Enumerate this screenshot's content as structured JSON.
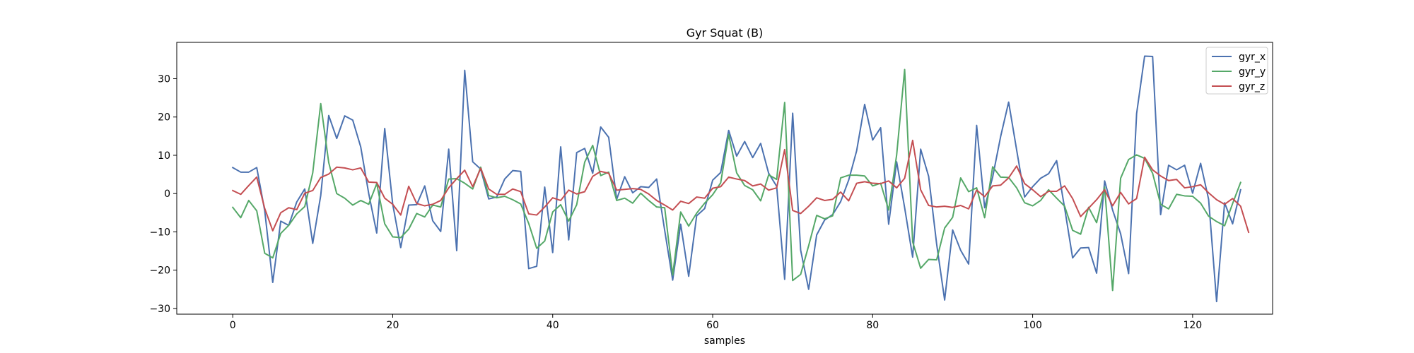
{
  "chart_data": {
    "type": "line",
    "title": "Gyr Squat (B)",
    "xlabel": "samples",
    "ylabel": "",
    "xlim": [
      -7,
      130
    ],
    "ylim": [
      -31.5,
      39.5
    ],
    "xticks": [
      0,
      20,
      40,
      60,
      80,
      100,
      120
    ],
    "yticks": [
      -30,
      -20,
      -10,
      0,
      10,
      20,
      30
    ],
    "grid": false,
    "legend_position": "top-right",
    "series": [
      {
        "name": "gyr_x",
        "color": "#4c72b0",
        "values": [
          6.8,
          5.6,
          5.6,
          6.8,
          -4.5,
          -23.2,
          -7.2,
          -8.3,
          -2.2,
          1.2,
          -13.0,
          -0.5,
          20.4,
          14.4,
          20.3,
          19.2,
          12.2,
          0.0,
          -10.3,
          17.0,
          -2.8,
          -14.1,
          -3.0,
          -2.9,
          2.0,
          -7.1,
          -9.9,
          11.6,
          -14.9,
          32.2,
          8.3,
          6.4,
          -1.4,
          -0.9,
          3.8,
          6.0,
          5.8,
          -19.6,
          -19.0,
          1.7,
          -15.4,
          12.2,
          -12.1,
          10.7,
          11.8,
          5.3,
          17.4,
          14.7,
          -1.5,
          4.4,
          0.2,
          1.8,
          1.6,
          3.8,
          -9.6,
          -22.6,
          -8.0,
          -21.6,
          -5.8,
          -3.9,
          3.5,
          5.5,
          16.5,
          9.8,
          13.6,
          9.4,
          13.1,
          5.3,
          1.9,
          -22.4,
          21.0,
          -14.8,
          -25.0,
          -10.8,
          -6.9,
          -5.5,
          -2.1,
          3.5,
          11.2,
          23.3,
          14.0,
          17.2,
          -8.0,
          8.3,
          -3.7,
          -16.6,
          11.6,
          4.5,
          -13.2,
          -27.8,
          -9.5,
          -14.8,
          -18.4,
          17.8,
          -3.7,
          4.3,
          14.9,
          23.9,
          11.4,
          -0.9,
          1.8,
          4.0,
          5.2,
          8.6,
          -3.8,
          -16.8,
          -14.2,
          -14.1,
          -20.8,
          3.3,
          -4.3,
          -10.5,
          -20.9,
          20.9,
          35.9,
          35.8,
          -5.5,
          7.4,
          6.2,
          7.4,
          0.1,
          7.9,
          -1.5,
          -28.2,
          -2.4,
          -7.9,
          1.0
        ]
      },
      {
        "name": "gyr_y",
        "color": "#55a868",
        "values": [
          -3.6,
          -6.3,
          -1.8,
          -4.5,
          -15.6,
          -16.8,
          -10.4,
          -8.3,
          -5.3,
          -3.4,
          5.4,
          23.5,
          8.1,
          0.0,
          -1.2,
          -3.0,
          -1.8,
          -2.8,
          2.6,
          -7.9,
          -11.3,
          -11.5,
          -9.3,
          -5.2,
          -6.1,
          -3.0,
          -3.5,
          3.8,
          3.9,
          2.7,
          1.2,
          6.9,
          -0.5,
          -1.1,
          -0.7,
          -1.6,
          -2.7,
          -7.8,
          -14.3,
          -12.4,
          -4.8,
          -2.9,
          -7.2,
          -2.9,
          8.2,
          12.6,
          4.7,
          5.6,
          -1.8,
          -1.2,
          -2.5,
          0.1,
          -1.8,
          -3.5,
          -3.7,
          -21.3,
          -4.8,
          -8.5,
          -5.1,
          -2.5,
          -0.3,
          2.8,
          15.4,
          5.4,
          2.1,
          1.0,
          -1.9,
          4.9,
          3.7,
          23.8,
          -22.7,
          -21.1,
          -13.6,
          -5.7,
          -6.6,
          -5.8,
          4.1,
          4.8,
          4.8,
          4.6,
          2.0,
          2.7,
          -4.3,
          10.1,
          32.4,
          -12.6,
          -19.5,
          -17.2,
          -17.3,
          -9.0,
          -6.2,
          4.1,
          0.5,
          1.5,
          -6.3,
          7.0,
          4.3,
          4.2,
          1.5,
          -2.4,
          -3.2,
          -1.8,
          1.0,
          -1.2,
          -3.3,
          -9.6,
          -10.6,
          -3.6,
          -7.6,
          1.7,
          -25.3,
          4.0,
          8.9,
          10.1,
          9.2,
          5.3,
          -2.8,
          -4.0,
          -0.2,
          -0.6,
          -0.7,
          -2.5,
          -5.9,
          -7.3,
          -8.4,
          -2.6,
          2.9
        ]
      },
      {
        "name": "gyr_z",
        "color": "#c44e52",
        "values": [
          0.8,
          -0.2,
          2.1,
          4.3,
          -3.9,
          -9.7,
          -5.0,
          -3.7,
          -4.2,
          0.1,
          0.8,
          4.2,
          5.1,
          6.9,
          6.7,
          6.2,
          6.7,
          3.0,
          2.9,
          -1.2,
          -2.8,
          -5.6,
          1.9,
          -2.6,
          -3.2,
          -2.8,
          -1.8,
          1.5,
          3.9,
          6.1,
          1.8,
          6.6,
          1.2,
          -0.2,
          -0.2,
          1.2,
          0.5,
          -5.3,
          -5.6,
          -3.5,
          -1.1,
          -1.8,
          0.9,
          -0.1,
          0.5,
          4.5,
          5.8,
          5.3,
          0.9,
          1.1,
          1.3,
          1.1,
          -0.1,
          -1.8,
          -3.0,
          -4.3,
          -2.0,
          -2.6,
          -0.9,
          -1.2,
          1.4,
          1.8,
          4.3,
          3.8,
          3.4,
          2.0,
          2.5,
          0.9,
          1.5,
          11.5,
          -4.4,
          -5.2,
          -3.3,
          -1.1,
          -1.8,
          -1.5,
          0.4,
          -1.9,
          2.7,
          3.1,
          2.7,
          2.6,
          3.3,
          1.5,
          4.0,
          13.9,
          1.0,
          -3.1,
          -3.5,
          -3.3,
          -3.6,
          -3.1,
          -4.0,
          0.9,
          -0.8,
          2.0,
          2.2,
          4.1,
          7.2,
          2.6,
          1.0,
          -0.8,
          0.6,
          0.6,
          2.0,
          -1.3,
          -6.0,
          -3.8,
          -1.6,
          1.0,
          -3.2,
          0.3,
          -2.7,
          -1.3,
          9.5,
          6.2,
          4.6,
          3.4,
          3.7,
          1.5,
          1.8,
          2.3,
          0.2,
          -1.6,
          -2.8,
          -1.3,
          -3.3,
          -10.1
        ]
      }
    ]
  }
}
